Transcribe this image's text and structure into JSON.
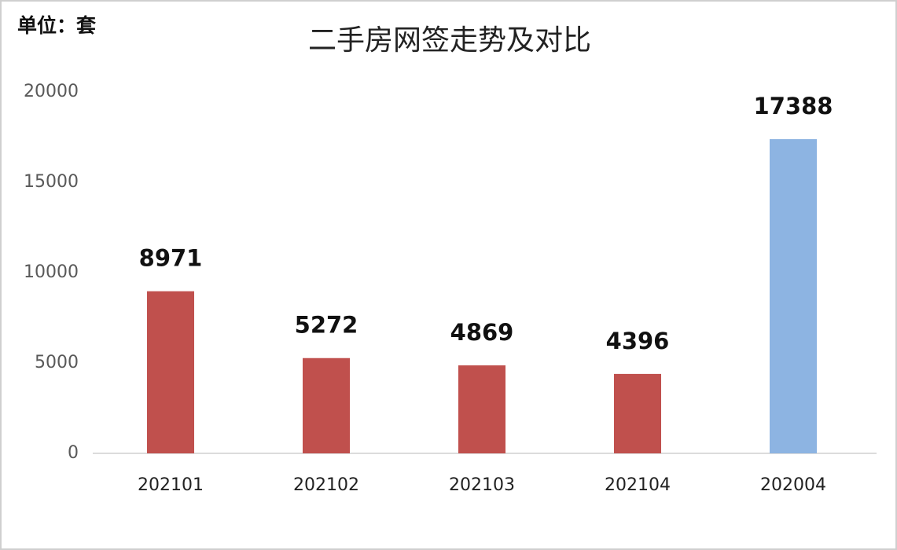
{
  "chart_data": {
    "type": "bar",
    "title": "二手房网签走势及对比",
    "unit_label": "单位：套",
    "categories": [
      "202101",
      "202102",
      "202103",
      "202104",
      "202004"
    ],
    "values": [
      8971,
      5272,
      4869,
      4396,
      17388
    ],
    "colors": [
      "#c0504d",
      "#c0504d",
      "#c0504d",
      "#c0504d",
      "#8db4e2"
    ],
    "ylim": [
      0,
      20000
    ],
    "yticks": [
      0,
      5000,
      10000,
      15000,
      20000
    ],
    "grid": false,
    "data_labels": true
  }
}
